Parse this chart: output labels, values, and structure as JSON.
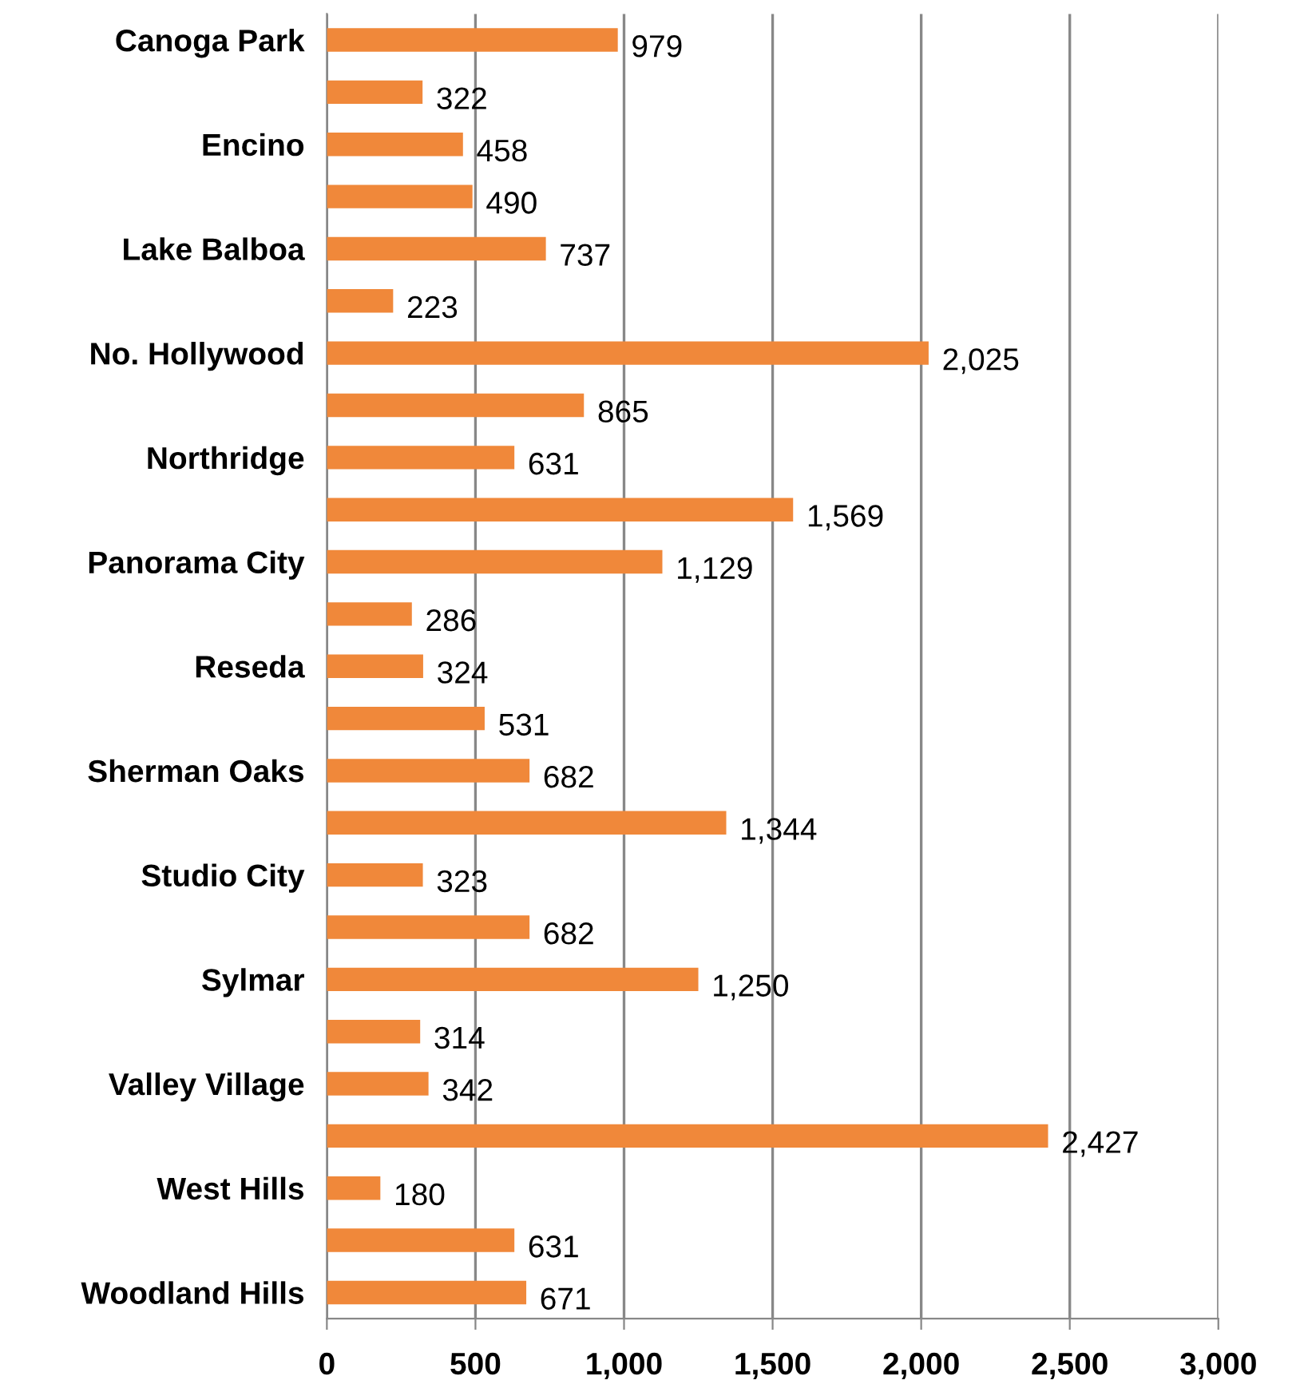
{
  "chart_data": {
    "type": "bar",
    "orientation": "horizontal",
    "categories": [
      "Canoga Park",
      null,
      "Encino",
      null,
      "Lake Balboa",
      null,
      "No. Hollywood",
      null,
      "Northridge",
      null,
      "Panorama City",
      null,
      "Reseda",
      null,
      "Sherman Oaks",
      null,
      "Studio City",
      null,
      "Sylmar",
      null,
      "Valley Village",
      null,
      "West Hills",
      null,
      "Woodland Hills"
    ],
    "values": [
      979,
      322,
      458,
      490,
      737,
      223,
      2025,
      865,
      631,
      1569,
      1129,
      286,
      324,
      531,
      682,
      1344,
      323,
      682,
      1250,
      314,
      342,
      2427,
      180,
      631,
      671
    ],
    "value_labels": [
      "979",
      "322",
      "458",
      "490",
      "737",
      "223",
      "2,025",
      "865",
      "631",
      "1,569",
      "1,129",
      "286",
      "324",
      "531",
      "682",
      "1,344",
      "323",
      "682",
      "1,250",
      "314",
      "342",
      "2,427",
      "180",
      "631",
      "671"
    ],
    "color": "#f0883a",
    "xlim": [
      0,
      3000
    ],
    "xticks": [
      0,
      500,
      {
        "value": 1000,
        "label": "1,000"
      },
      {
        "value": 1500,
        "label": "1,500"
      },
      {
        "value": 2000,
        "label": "2,000"
      },
      {
        "value": 2500,
        "label": "2,500"
      },
      {
        "value": 3000,
        "label": "3,000"
      }
    ],
    "grid": "x"
  }
}
